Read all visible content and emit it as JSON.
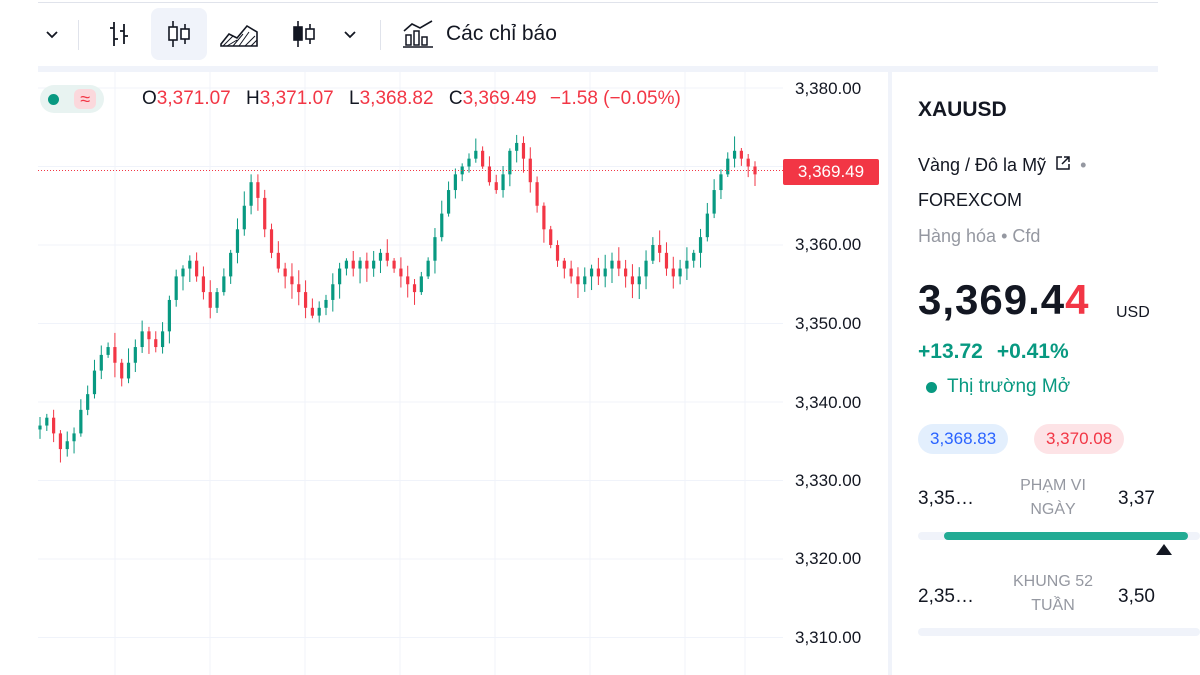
{
  "toolbar": {
    "indicators_label": "Các chỉ báo",
    "active_chart_type": "candles"
  },
  "legend": {
    "o_key": "O",
    "o_val": "3,371.07",
    "h_key": "H",
    "h_val": "3,371.07",
    "l_key": "L",
    "l_val": "3,368.82",
    "c_key": "C",
    "c_val": "3,369.49",
    "change": "−1.58 (−0.05%)"
  },
  "price_axis": {
    "ticks": [
      "3,380.00",
      "3,370.00",
      "3,360.00",
      "3,350.00",
      "3,340.00",
      "3,330.00",
      "3,320.00",
      "3,310.00"
    ],
    "current_price_label": "3,369.49"
  },
  "chart_data": {
    "type": "candlestick",
    "ylim": [
      3305,
      3381
    ],
    "last_price": 3369.49,
    "closes": [
      3337,
      3338,
      3336,
      3334,
      3335,
      3336,
      3339,
      3341,
      3344,
      3346,
      3347,
      3345,
      3343,
      3345,
      3347,
      3349,
      3348,
      3347,
      3349,
      3353,
      3356,
      3357,
      3358,
      3356,
      3354,
      3352,
      3354,
      3356,
      3359,
      3362,
      3365,
      3368,
      3366,
      3362,
      3359,
      3357,
      3356,
      3355,
      3354,
      3352,
      3351,
      3352,
      3353,
      3355,
      3357,
      3358,
      3357,
      3358,
      3357,
      3358,
      3359,
      3358,
      3357,
      3356,
      3355,
      3354,
      3356,
      3358,
      3361,
      3364,
      3367,
      3369,
      3370,
      3371,
      3372,
      3370,
      3368,
      3367,
      3369,
      3372,
      3373,
      3371,
      3368,
      3365,
      3362,
      3360,
      3358,
      3357,
      3356,
      3355,
      3356,
      3357,
      3356,
      3357,
      3358,
      3357,
      3356,
      3355,
      3356,
      3358,
      3360,
      3359,
      3357,
      3356,
      3357,
      3358,
      3359,
      3361,
      3364,
      3367,
      3369,
      3371,
      3372,
      3371,
      3370,
      3369
    ]
  },
  "panel": {
    "symbol": "XAUUSD",
    "description": "Vàng / Đô la Mỹ",
    "bullet": "•",
    "exchange": "FOREXCOM",
    "category": "Hàng hóa • Cfd",
    "price_main": "3,369.4",
    "price_last_digit": "4",
    "currency": "USD",
    "change_abs": "+13.72",
    "change_pct": "+0.41%",
    "market_status": "Thị trường Mở",
    "bid": "3,368.83",
    "ask": "3,370.08",
    "day_range": {
      "low": "3,35…",
      "label_1": "PHẠM VI",
      "label_2": "NGÀY",
      "high": "3,37",
      "position": 0.97
    },
    "week52_range": {
      "low": "2,35…",
      "label_1": "KHUNG 52",
      "label_2": "TUẦN",
      "high": "3,50",
      "position": 0.96
    }
  },
  "colors": {
    "up": "#089981",
    "down": "#f23645",
    "accent": "#2962ff"
  }
}
